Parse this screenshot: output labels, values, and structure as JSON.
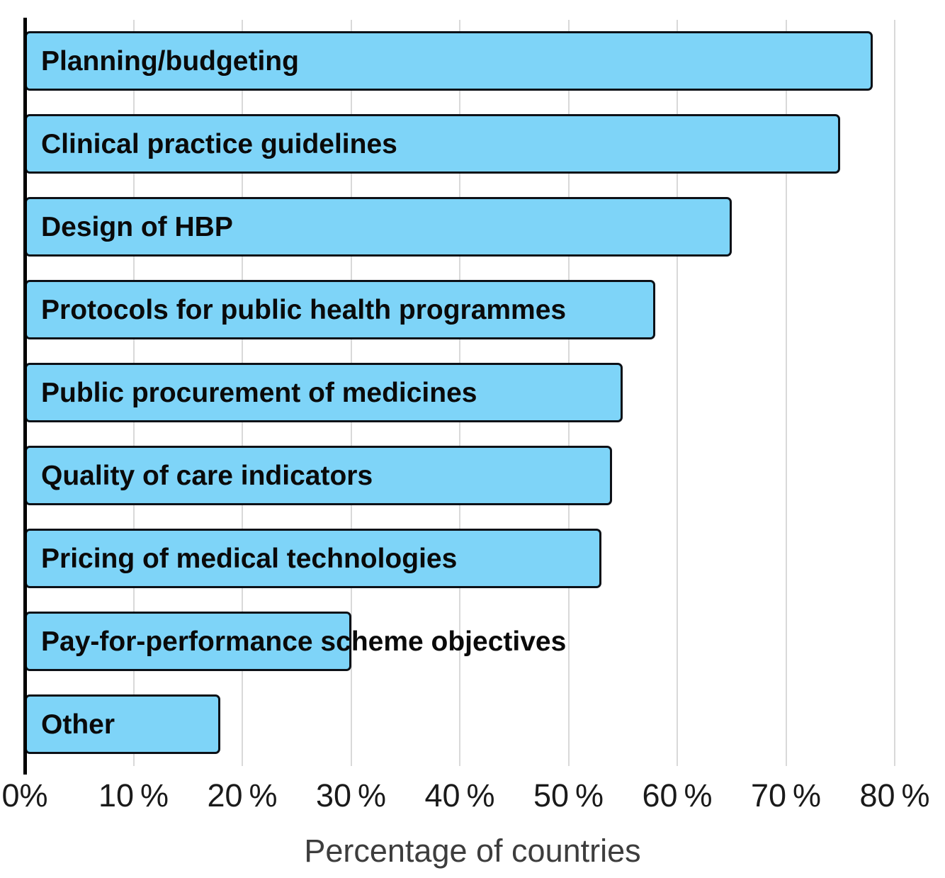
{
  "chart_data": {
    "type": "bar",
    "orientation": "horizontal",
    "title": "",
    "xlabel": "Percentage of countries",
    "ylabel": "",
    "categories": [
      "Planning/budgeting",
      "Clinical practice guidelines",
      "Design of HBP",
      "Protocols for public health programmes",
      "Public procurement of medicines",
      "Quality of care indicators",
      "Pricing of medical technologies",
      "Pay-for-performance scheme objectives",
      "Other"
    ],
    "values": [
      78,
      75,
      65,
      58,
      55,
      54,
      53,
      30,
      18
    ],
    "value_unit": "%",
    "xlim": [
      0,
      80
    ],
    "x_ticks": [
      0,
      10,
      20,
      30,
      40,
      50,
      60,
      70,
      80
    ],
    "x_tick_labels": [
      "0%",
      "10 %",
      "20 %",
      "30 %",
      "40 %",
      "50 %",
      "60 %",
      "70 %",
      "80 %"
    ],
    "grid": "vertical",
    "legend": "none",
    "category_labels_inside_bars": true,
    "colors": {
      "bar_fill": "#7ed4f8",
      "bar_border": "#0d1117",
      "gridline": "#d9d9d9",
      "axis_line": "#000000",
      "tick_text": "#1a1a1a",
      "bar_label_text": "#0a0a0a",
      "axis_title_text": "#3d3d3d",
      "background": "#ffffff"
    }
  }
}
